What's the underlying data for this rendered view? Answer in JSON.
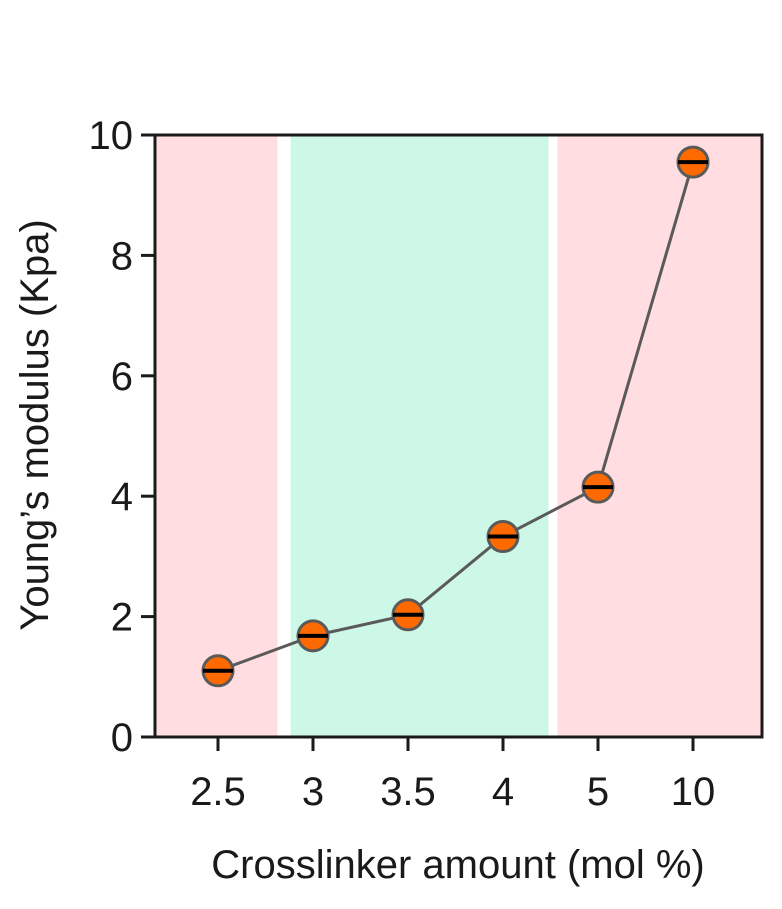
{
  "chart_data": {
    "type": "line",
    "title": "",
    "xlabel": "Crosslinker amount (mol %)",
    "ylabel": "Young’s modulus (Kpa)",
    "categories": [
      "2.5",
      "3",
      "3.5",
      "4",
      "5",
      "10"
    ],
    "series": [
      {
        "values": [
          1.1,
          1.68,
          2.03,
          3.33,
          4.15,
          9.55
        ],
        "error": [
          0.08,
          0.07,
          0.08,
          0.1,
          0.12,
          0.15
        ]
      }
    ],
    "ylim": [
      0,
      10
    ],
    "yticks": [
      "0",
      "2",
      "4",
      "6",
      "8",
      "10"
    ],
    "grid": false,
    "regions": [
      {
        "from_category": "2.5",
        "to_category": "2.5",
        "color": "#ffdde0"
      },
      {
        "from_category": "3",
        "to_category": "4",
        "color": "#cdf7e6"
      },
      {
        "from_category": "5",
        "to_category": "10",
        "color": "#ffdde0"
      }
    ],
    "colors": {
      "marker": "#ff6a00",
      "marker_edge": "#5a5a5a",
      "line": "#5a5a5a",
      "error": "#000000",
      "axis": "#1a1a1a"
    }
  }
}
